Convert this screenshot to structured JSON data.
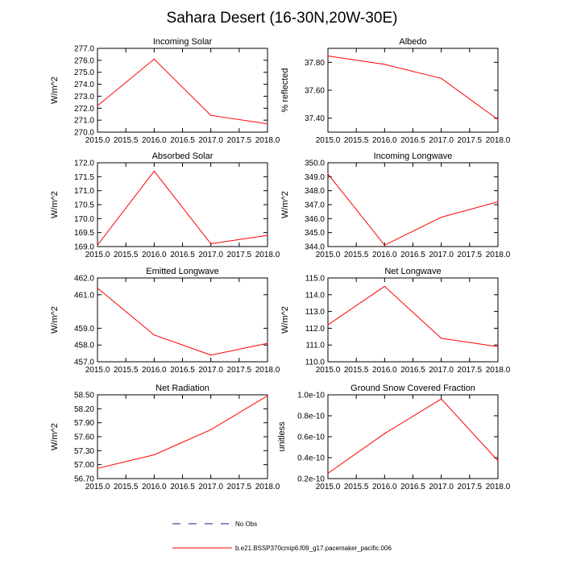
{
  "figure": {
    "title": "Sahara Desert (16-30N,20W-30E)",
    "legend": [
      {
        "label": "No Obs",
        "style": "dashed",
        "color": "#1f1f7a"
      },
      {
        "label": "b.e21.BSSP370cmip6.f09_g17.pacemaker_pacific.006",
        "style": "solid",
        "color": "#ff0000"
      }
    ]
  },
  "chart_data": [
    {
      "type": "line",
      "title": "Incoming Solar",
      "ylabel": "W/m^2",
      "x": [
        2015,
        2016,
        2017,
        2018
      ],
      "series": [
        {
          "values": [
            272.2,
            276.1,
            271.4,
            270.7
          ],
          "color": "#ff0000"
        }
      ],
      "xlim": [
        2015,
        2018
      ],
      "ylim": [
        270,
        277
      ],
      "xticks": [
        "2015.0",
        "2015.5",
        "2016.0",
        "2016.5",
        "2017.0",
        "2017.5",
        "2018.0"
      ],
      "yticks": [
        "270.0",
        "271.0",
        "272.0",
        "273.0",
        "274.0",
        "275.0",
        "276.0",
        "277.0"
      ],
      "ytick_values": [
        270,
        271,
        272,
        273,
        274,
        275,
        276,
        277
      ]
    },
    {
      "type": "line",
      "title": "Albedo",
      "ylabel": "% reflected",
      "x": [
        2015,
        2016,
        2017,
        2018
      ],
      "series": [
        {
          "values": [
            37.845,
            37.785,
            37.685,
            37.39
          ],
          "color": "#ff0000"
        }
      ],
      "xlim": [
        2015,
        2018
      ],
      "ylim": [
        37.3,
        37.9
      ],
      "xticks": [
        "2015.0",
        "2015.5",
        "2016.0",
        "2016.5",
        "2017.0",
        "2017.5",
        "2018.0"
      ],
      "yticks": [
        "37.40",
        "37.60",
        "37.80"
      ],
      "ytick_values": [
        37.4,
        37.6,
        37.8
      ]
    },
    {
      "type": "line",
      "title": "Absorbed Solar",
      "ylabel": "W/m^2",
      "x": [
        2015,
        2016,
        2017,
        2018
      ],
      "series": [
        {
          "values": [
            169.05,
            171.7,
            169.1,
            169.4
          ],
          "color": "#ff0000"
        }
      ],
      "xlim": [
        2015,
        2018
      ],
      "ylim": [
        169,
        172
      ],
      "xticks": [
        "2015.0",
        "2015.5",
        "2016.0",
        "2016.5",
        "2017.0",
        "2017.5",
        "2018.0"
      ],
      "yticks": [
        "169.0",
        "169.5",
        "170.0",
        "170.5",
        "171.0",
        "171.5",
        "172.0"
      ],
      "ytick_values": [
        169,
        169.5,
        170,
        170.5,
        171,
        171.5,
        172
      ]
    },
    {
      "type": "line",
      "title": "Incoming Longwave",
      "ylabel": "W/m^2",
      "x": [
        2015,
        2016,
        2017,
        2018
      ],
      "series": [
        {
          "values": [
            349.2,
            344.1,
            346.1,
            347.2
          ],
          "color": "#ff0000"
        }
      ],
      "xlim": [
        2015,
        2018
      ],
      "ylim": [
        344,
        350
      ],
      "xticks": [
        "2015.0",
        "2015.5",
        "2016.0",
        "2016.5",
        "2017.0",
        "2017.5",
        "2018.0"
      ],
      "yticks": [
        "344.0",
        "345.0",
        "346.0",
        "347.0",
        "348.0",
        "349.0",
        "350.0"
      ],
      "ytick_values": [
        344,
        345,
        346,
        347,
        348,
        349,
        350
      ]
    },
    {
      "type": "line",
      "title": "Emitted Longwave",
      "ylabel": "W/m^2",
      "x": [
        2015,
        2016,
        2017,
        2018
      ],
      "series": [
        {
          "values": [
            461.4,
            458.6,
            457.4,
            458.1
          ],
          "color": "#ff0000"
        }
      ],
      "xlim": [
        2015,
        2018
      ],
      "ylim": [
        457,
        462
      ],
      "xticks": [
        "2015.0",
        "2015.5",
        "2016.0",
        "2016.5",
        "2017.0",
        "2017.5",
        "2018.0"
      ],
      "yticks": [
        "457.0",
        "458.0",
        "459.0",
        "461.0",
        "462.0"
      ],
      "ytick_values": [
        457,
        458,
        459,
        461,
        462
      ]
    },
    {
      "type": "line",
      "title": "Net Longwave",
      "ylabel": "W/m^2",
      "x": [
        2015,
        2016,
        2017,
        2018
      ],
      "series": [
        {
          "values": [
            112.2,
            114.5,
            111.4,
            110.9
          ],
          "color": "#ff0000"
        }
      ],
      "xlim": [
        2015,
        2018
      ],
      "ylim": [
        110,
        115
      ],
      "xticks": [
        "2015.0",
        "2015.5",
        "2016.0",
        "2016.5",
        "2017.0",
        "2017.5",
        "2018.0"
      ],
      "yticks": [
        "110.0",
        "111.0",
        "112.0",
        "113.0",
        "114.0",
        "115.0"
      ],
      "ytick_values": [
        110,
        111,
        112,
        113,
        114,
        115
      ]
    },
    {
      "type": "line",
      "title": "Net Radiation",
      "ylabel": "W/m^2",
      "x": [
        2015,
        2016,
        2017,
        2018
      ],
      "series": [
        {
          "values": [
            56.92,
            57.21,
            57.75,
            58.48
          ],
          "color": "#ff0000"
        }
      ],
      "xlim": [
        2015,
        2018
      ],
      "ylim": [
        56.7,
        58.5
      ],
      "xticks": [
        "2015.0",
        "2015.5",
        "2016.0",
        "2016.5",
        "2017.0",
        "2017.5",
        "2018.0"
      ],
      "yticks": [
        "56.70",
        "57.00",
        "57.30",
        "57.60",
        "57.90",
        "58.20",
        "58.50"
      ],
      "ytick_values": [
        56.7,
        57.0,
        57.3,
        57.6,
        57.9,
        58.2,
        58.5
      ]
    },
    {
      "type": "line",
      "title": "Ground Snow Covered Fraction",
      "ylabel": "unitless",
      "x": [
        2015,
        2016,
        2017,
        2018
      ],
      "series": [
        {
          "values": [
            2.5e-11,
            6.3e-11,
            9.6e-11,
            3.7e-11
          ],
          "color": "#ff0000"
        }
      ],
      "xlim": [
        2015,
        2018
      ],
      "ylim": [
        2e-11,
        1e-10
      ],
      "xticks": [
        "2015.0",
        "2015.5",
        "2016.0",
        "2016.5",
        "2017.0",
        "2017.5",
        "2018.0"
      ],
      "yticks": [
        "0.2e-10",
        "0.4e-10",
        "0.6e-10",
        "0.8e-10",
        "1.0e-10"
      ],
      "ytick_values": [
        2e-11,
        4e-11,
        6e-11,
        8e-11,
        1e-10
      ]
    }
  ]
}
